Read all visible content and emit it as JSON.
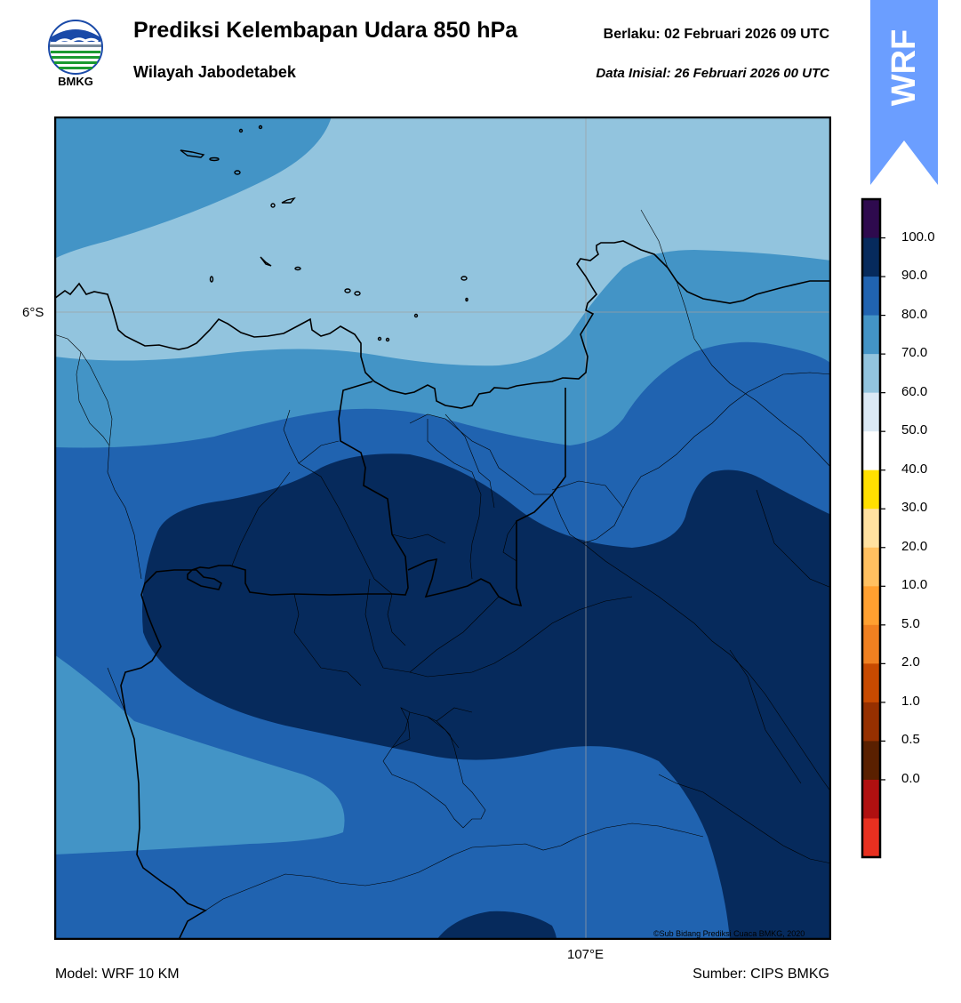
{
  "header": {
    "logo_text": "BMKG",
    "title": "Prediksi Kelembapan Udara 850 hPa",
    "subtitle": "Wilayah Jabodetabek",
    "valid": "Berlaku:  02 Februari 2026 09 UTC",
    "initial": "Data Inisial:  26 Februari 2026 00 UTC"
  },
  "badge": {
    "text": "WRF",
    "color": "#6b9eff"
  },
  "map": {
    "lat_label": "6°S",
    "lon_label": "107°E",
    "copyright": "©Sub Bidang Prediksi Cuaca BMKG, 2020"
  },
  "footer": {
    "model": "Model: WRF 10 KM",
    "source": "Sumber: CIPS BMKG"
  },
  "colorbar": {
    "labels": [
      "100.0",
      "90.0",
      "80.0",
      "70.0",
      "60.0",
      "50.0",
      "40.0",
      "30.0",
      "20.0",
      "10.0",
      "5.0",
      "2.0",
      "1.0",
      "0.5",
      "0.0"
    ],
    "colors_top_to_bottom": [
      "#2e0a4e",
      "#062a5c",
      "#2063b0",
      "#4394c6",
      "#92c4de",
      "#dbe9f5",
      "#ffffff",
      "#ffe000",
      "#ffe1a0",
      "#ffc060",
      "#ffa030",
      "#f08020",
      "#c84a00",
      "#963000",
      "#5a2000",
      "#b01010",
      "#e83020"
    ]
  },
  "legend_colors": {
    "rh_90_100": "#062a5c",
    "rh_80_90": "#2063b0",
    "rh_70_80": "#4394c6",
    "rh_60_70": "#92c4de"
  }
}
